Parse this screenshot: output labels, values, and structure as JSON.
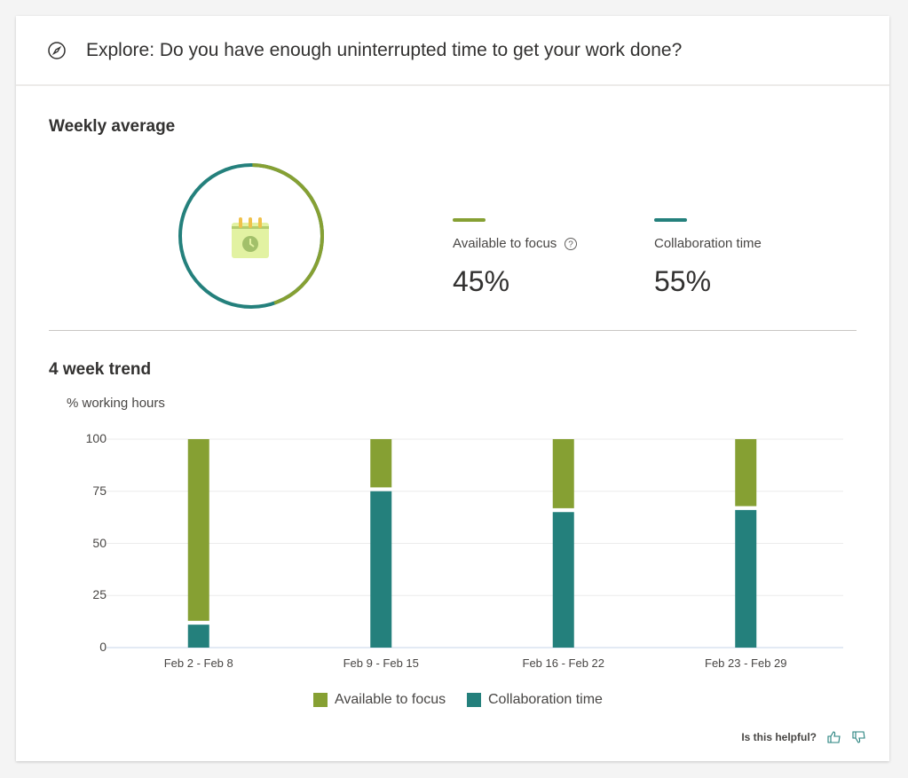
{
  "header": {
    "title": "Explore: Do you have enough uninterrupted time to get your work done?",
    "icon": "compass-icon"
  },
  "weekly": {
    "title": "Weekly average",
    "focus": {
      "label": "Available to focus",
      "value": "45%",
      "color": "#86a033"
    },
    "collab": {
      "label": "Collaboration time",
      "value": "55%",
      "color": "#24807c"
    }
  },
  "trend": {
    "title": "4 week trend"
  },
  "chart_data": {
    "type": "bar",
    "stacked": true,
    "ylabel": "% working hours",
    "ylim": [
      0,
      100
    ],
    "yticks": [
      "0",
      "25",
      "50",
      "75",
      "100"
    ],
    "categories": [
      "Feb 2 - Feb 8",
      "Feb 9 - Feb 15",
      "Feb 16 - Feb 22",
      "Feb 23 - Feb 29"
    ],
    "series": [
      {
        "name": "Collaboration time",
        "color": "#24807c",
        "values": [
          11,
          75,
          65,
          66
        ]
      },
      {
        "name": "Available to focus",
        "color": "#86a033",
        "values": [
          88,
          24,
          34,
          33
        ]
      }
    ],
    "legend": "bottom"
  },
  "footer": {
    "helpful": "Is this helpful?"
  }
}
